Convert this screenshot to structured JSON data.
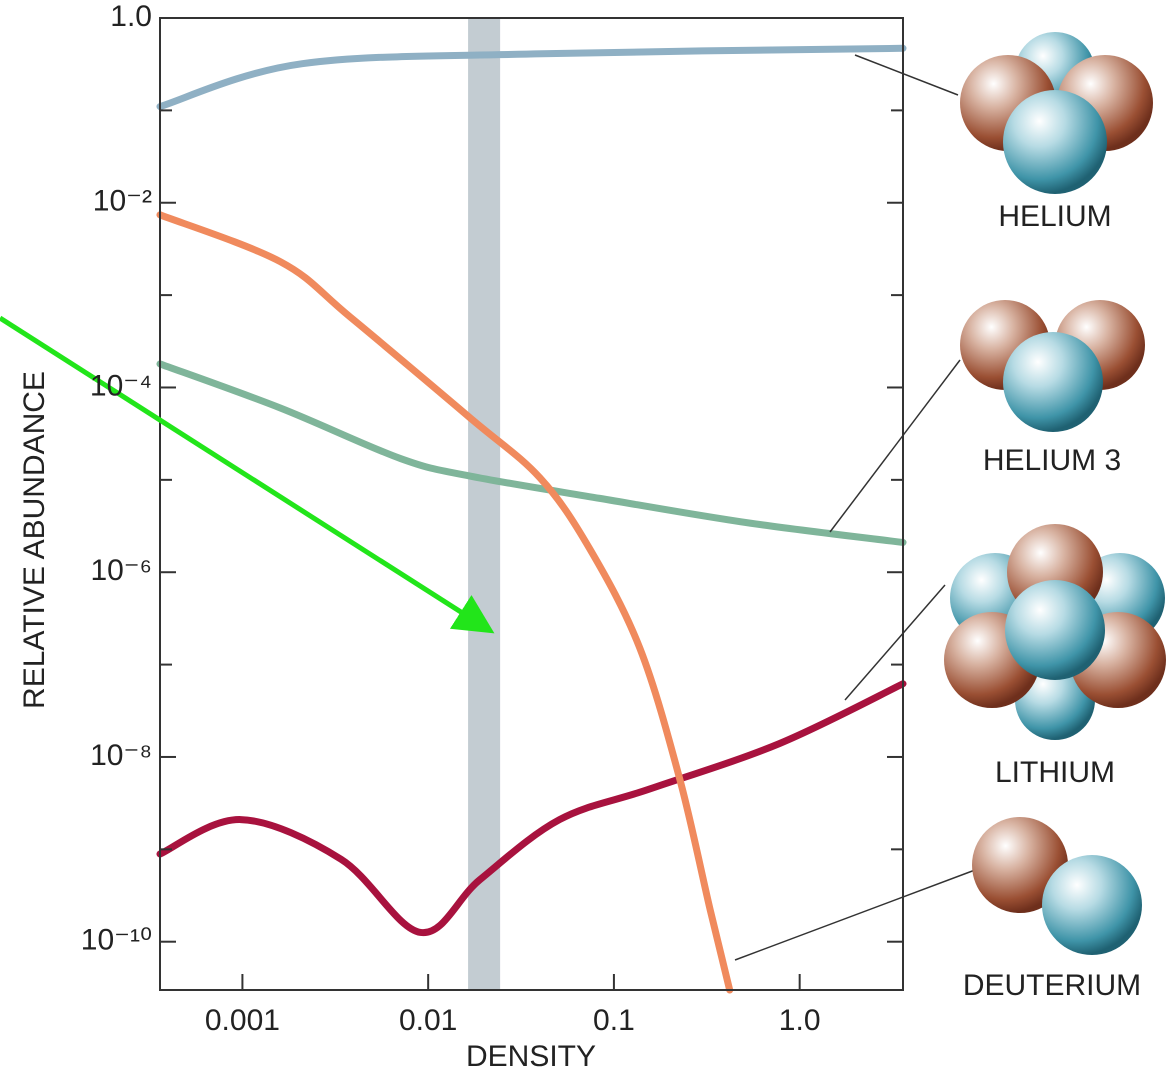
{
  "chart_data": {
    "type": "line",
    "xscale": "log",
    "yscale": "log",
    "xlabel": "DENSITY",
    "ylabel": "RELATIVE ABUNDANCE",
    "xlim": [
      0.00036,
      3.6
    ],
    "ylim": [
      3e-11,
      1
    ],
    "xticks": [
      0.001,
      0.01,
      0.1,
      {
        "value": 1,
        "label": "1.0"
      }
    ],
    "yticks": [
      {
        "value": 1,
        "label": "1.0"
      },
      {
        "value": 0.01,
        "label": "10⁻²"
      },
      {
        "value": 0.0001,
        "label": "10⁻⁴"
      },
      {
        "value": 1e-06,
        "label": "10⁻⁶"
      },
      {
        "value": 1e-08,
        "label": "10⁻⁸"
      },
      {
        "value": 1e-10,
        "label": "10⁻¹⁰"
      }
    ],
    "yminorticks": [
      0.1,
      0.001,
      1e-05,
      1e-07,
      1e-09
    ],
    "shaded_range": [
      0.0164,
      0.0244
    ],
    "shaded_color": "#c3ccd2",
    "series": [
      {
        "name": "HELIUM",
        "color": "#8fb0c4",
        "x": [
          0.00036,
          0.0021,
          0.041,
          3.6
        ],
        "values": [
          0.11,
          0.32,
          0.41,
          0.47
        ]
      },
      {
        "name": "HELIUM 3",
        "color": "#7fb59a",
        "x": [
          0.00036,
          0.0016,
          0.0071,
          0.0168,
          0.084,
          0.54,
          3.6
        ],
        "values": [
          0.00018,
          6e-05,
          1.7e-05,
          1.1e-05,
          6.3e-06,
          3.4e-06,
          2.1e-06
        ]
      },
      {
        "name": "LITHIUM",
        "color": "#a8123e",
        "x": [
          0.00036,
          0.00098,
          0.0034,
          0.0091,
          0.019,
          0.051,
          0.156,
          0.78,
          3.6
        ],
        "values": [
          8.9e-10,
          2.1e-09,
          7.8e-10,
          1.26e-10,
          4.7e-10,
          2.1e-09,
          4.5e-09,
          1.4e-08,
          6.2e-08
        ]
      },
      {
        "name": "DEUTERIUM",
        "color": "#f08a5d",
        "x": [
          0.00036,
          0.0016,
          0.0038,
          0.0168,
          0.04,
          0.074,
          0.138,
          0.226,
          0.33,
          0.42
        ],
        "values": [
          0.0074,
          0.0023,
          0.00058,
          4.7e-05,
          1.05e-05,
          1.8e-06,
          1.5e-07,
          5.8e-09,
          2.2e-10,
          3e-11
        ]
      }
    ]
  }
}
